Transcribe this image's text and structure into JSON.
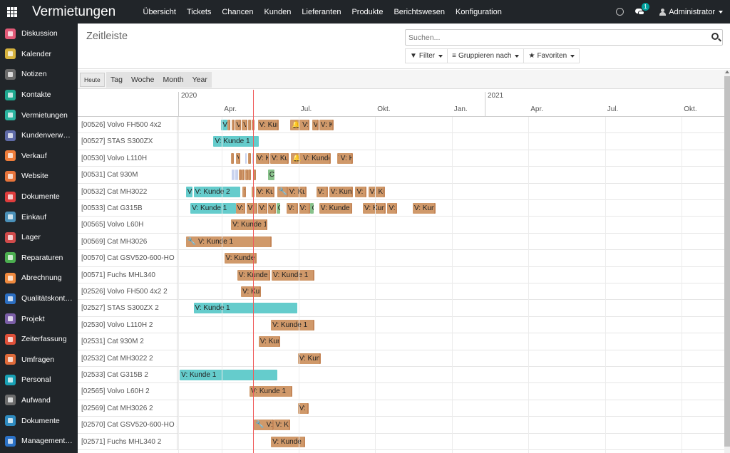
{
  "topbar": {
    "app_title": "Vermietungen",
    "menu": [
      "Übersicht",
      "Tickets",
      "Chancen",
      "Kunden",
      "Lieferanten",
      "Produkte",
      "Berichtswesen",
      "Konfiguration"
    ],
    "chat_badge": "1",
    "user": "Administrator"
  },
  "sidebar": {
    "items": [
      {
        "label": "Diskussion",
        "color": "#e25977"
      },
      {
        "label": "Kalender",
        "color": "#d6b23d"
      },
      {
        "label": "Notizen",
        "color": "#6b6b6b"
      },
      {
        "label": "Kontakte",
        "color": "#1fa88f"
      },
      {
        "label": "Vermietungen",
        "color": "#2ab39f"
      },
      {
        "label": "Kundenverwaltung",
        "color": "#5f6ba8"
      },
      {
        "label": "Verkauf",
        "color": "#ef7d3a"
      },
      {
        "label": "Website",
        "color": "#e8743b"
      },
      {
        "label": "Dokumente",
        "color": "#e03d3d"
      },
      {
        "label": "Einkauf",
        "color": "#4a90b8"
      },
      {
        "label": "Lager",
        "color": "#d14b4b"
      },
      {
        "label": "Reparaturen",
        "color": "#4caf50"
      },
      {
        "label": "Abrechnung",
        "color": "#f08a3e"
      },
      {
        "label": "Qualitätskontrolle",
        "color": "#2c6fc2"
      },
      {
        "label": "Projekt",
        "color": "#7b5ea7"
      },
      {
        "label": "Zeiterfassung",
        "color": "#e0513a"
      },
      {
        "label": "Umfragen",
        "color": "#e06b3a"
      },
      {
        "label": "Personal",
        "color": "#18a1b5"
      },
      {
        "label": "Aufwand",
        "color": "#6d6d6d"
      },
      {
        "label": "Dokumente",
        "color": "#2e8bc0"
      },
      {
        "label": "Management-Reports",
        "color": "#2b72c7"
      }
    ]
  },
  "control_panel": {
    "title": "Zeitleiste",
    "search_placeholder": "Suchen...",
    "filter_label": "Filter",
    "group_label": "Gruppieren nach",
    "favorites_label": "Favoriten"
  },
  "scale": {
    "today": "Heute",
    "options": [
      "Tag",
      "Woche",
      "Month",
      "Year"
    ]
  },
  "timeline": {
    "years": [
      "2020",
      "2021"
    ],
    "quarters": [
      "Apr.",
      "Jul.",
      "Okt.",
      "Jan.",
      "Apr.",
      "Jul.",
      "Okt."
    ],
    "rows": [
      {
        "label": "[00526] Volvo FH500 4x2",
        "bars": [
          {
            "s": 0.56,
            "e": 0.645,
            "t": "V: Kunde 1",
            "c": "c"
          },
          {
            "s": 0.645,
            "e": 0.675,
            "t": "V: Kunde 1",
            "c": "o"
          },
          {
            "s": 0.695,
            "e": 0.725,
            "t": "V: Kunde 1",
            "c": "o"
          },
          {
            "s": 0.74,
            "e": 0.815,
            "t": "V: Kunde 1",
            "c": "o"
          },
          {
            "s": 0.83,
            "e": 0.9,
            "t": "V: Kunde 1",
            "c": "o"
          },
          {
            "s": 0.915,
            "e": 0.935,
            "t": "V: Kunde 1",
            "c": "o"
          },
          {
            "s": 0.955,
            "e": 1.0,
            "t": "V: Kunde 1",
            "c": "o"
          },
          {
            "s": 1.04,
            "e": 1.31,
            "t": "V: Kunde 2",
            "c": "o"
          },
          {
            "s": 1.46,
            "e": 1.71,
            "t": "🔔 V: Kunde 1",
            "c": "o"
          },
          {
            "s": 1.745,
            "e": 1.83,
            "t": "V: Kunde 1",
            "c": "o"
          },
          {
            "s": 1.84,
            "e": 2.03,
            "t": "V: Kunde 1",
            "c": "o"
          }
        ]
      },
      {
        "label": "[00527] STAS S300ZX",
        "bars": [
          {
            "s": 0.46,
            "e": 1.05,
            "t": "V: Kunde 1",
            "c": "c"
          }
        ]
      },
      {
        "label": "[00530] Volvo L110H",
        "bars": [
          {
            "s": 0.69,
            "e": 0.73,
            "t": "V: Kunde 1",
            "c": "o"
          },
          {
            "s": 0.75,
            "e": 0.81,
            "t": "V: Kunde 1",
            "c": "o"
          },
          {
            "s": 0.87,
            "e": 0.875,
            "t": "",
            "c": "l"
          },
          {
            "s": 0.91,
            "e": 0.95,
            "t": "V: Kunde 1",
            "c": "o"
          },
          {
            "s": 0.97,
            "e": 0.98,
            "t": "",
            "c": "l"
          },
          {
            "s": 1.01,
            "e": 1.19,
            "t": "V: Kunde 1",
            "c": "o"
          },
          {
            "s": 1.2,
            "e": 1.445,
            "t": "V: Kunde 1",
            "c": "o"
          },
          {
            "s": 1.47,
            "e": 1.99,
            "t": "🔔 V: Kunde 2",
            "c": "o"
          },
          {
            "s": 2.07,
            "e": 2.09,
            "t": "V: Kunde 1",
            "c": "o"
          },
          {
            "s": 2.1,
            "e": 2.28,
            "t": "V: Kunde 1",
            "c": "o"
          }
        ]
      },
      {
        "label": "[00531] Cat 930M",
        "bars": [
          {
            "s": 0.7,
            "e": 0.71,
            "t": "",
            "c": "l"
          },
          {
            "s": 0.72,
            "e": 0.73,
            "t": "",
            "c": "l"
          },
          {
            "s": 0.74,
            "e": 0.75,
            "t": "",
            "c": "l"
          },
          {
            "s": 0.76,
            "e": 0.77,
            "t": "",
            "c": "l"
          },
          {
            "s": 0.79,
            "e": 0.81,
            "t": "V: Kunde 1",
            "c": "o"
          },
          {
            "s": 0.83,
            "e": 0.85,
            "t": "V: Kunde 1",
            "c": "o"
          },
          {
            "s": 0.87,
            "e": 0.89,
            "t": "V: Kunde 1",
            "c": "o"
          },
          {
            "s": 0.91,
            "e": 0.95,
            "t": "V: Kunde 1",
            "c": "o"
          },
          {
            "s": 0.98,
            "e": 1.0,
            "t": "V: Kunde 1",
            "c": "o"
          },
          {
            "s": 1.17,
            "e": 1.26,
            "t": "CORRECTIVE",
            "c": "g"
          }
        ]
      },
      {
        "label": "[00532] Cat MH3022",
        "bars": [
          {
            "s": 0.1,
            "e": 0.19,
            "t": "V: Kunde 1",
            "c": "c"
          },
          {
            "s": 0.2,
            "e": 0.81,
            "t": "V: Kunde 2",
            "c": "c"
          },
          {
            "s": 0.84,
            "e": 0.88,
            "t": "V: Kunde 1",
            "c": "o"
          },
          {
            "s": 0.96,
            "e": 1.0,
            "t": "V: Kunde 1",
            "c": "o"
          },
          {
            "s": 1.01,
            "e": 1.26,
            "t": "V: Kunde 1",
            "c": "o"
          },
          {
            "s": 1.29,
            "e": 1.43,
            "t": "🔧🔔 V: Kunde 2",
            "c": "o"
          },
          {
            "s": 1.43,
            "e": 1.67,
            "t": "V: Kunde 2",
            "c": "o"
          },
          {
            "s": 1.8,
            "e": 1.95,
            "t": "V: Kunde 1",
            "c": "o"
          },
          {
            "s": 1.97,
            "e": 2.28,
            "t": "V: Kunde 2",
            "c": "o"
          },
          {
            "s": 2.31,
            "e": 2.46,
            "t": "V: Kunde 1",
            "c": "o"
          },
          {
            "s": 2.48,
            "e": 2.7,
            "t": "V: Kunde 2",
            "c": "o"
          }
        ]
      },
      {
        "label": "[00533] Cat G315B",
        "bars": [
          {
            "s": 0.16,
            "e": 0.75,
            "t": "V: Kunde 1",
            "c": "c"
          },
          {
            "s": 0.75,
            "e": 0.87,
            "t": "V: Kunde 1",
            "c": "o"
          },
          {
            "s": 0.89,
            "e": 1.03,
            "t": "V: Kunde 1",
            "c": "o"
          },
          {
            "s": 1.04,
            "e": 1.16,
            "t": "V: Kunde 1",
            "c": "o"
          },
          {
            "s": 1.17,
            "e": 1.27,
            "t": "V: Kunde 1",
            "c": "o"
          },
          {
            "s": 1.28,
            "e": 1.33,
            "t": "CORRECTIVE",
            "c": "g"
          },
          {
            "s": 1.41,
            "e": 1.56,
            "t": "V: Kunde 1",
            "c": "o"
          },
          {
            "s": 1.57,
            "e": 1.72,
            "t": "V: Kunde 1",
            "c": "o"
          },
          {
            "s": 1.725,
            "e": 1.765,
            "t": "CORRECTIVE",
            "c": "g"
          },
          {
            "s": 1.84,
            "e": 2.27,
            "t": "V: Kunde 1",
            "c": "o"
          },
          {
            "s": 2.41,
            "e": 2.71,
            "t": "V: Kunde 2",
            "c": "o"
          },
          {
            "s": 2.73,
            "e": 2.86,
            "t": "V: Kunde 1",
            "c": "o"
          },
          {
            "s": 3.06,
            "e": 3.36,
            "t": "V: Kunde 2",
            "c": "o"
          }
        ]
      },
      {
        "label": "[00565] Volvo L60H",
        "bars": [
          {
            "s": 0.69,
            "e": 1.16,
            "t": "V: Kunde 1",
            "c": "o"
          }
        ]
      },
      {
        "label": "[00569] Cat MH3026",
        "bars": [
          {
            "s": 0.1,
            "e": 1.22,
            "t": "🔧 V: Kunde 1",
            "c": "o"
          }
        ]
      },
      {
        "label": "[00570] Cat GSV520-600-HO",
        "bars": [
          {
            "s": 0.6,
            "e": 1.02,
            "t": "V: Kunde 1",
            "c": "o"
          }
        ]
      },
      {
        "label": "[00571] Fuchs MHL340",
        "bars": [
          {
            "s": 0.77,
            "e": 1.2,
            "t": "V: Kunde 1",
            "c": "o"
          },
          {
            "s": 1.22,
            "e": 1.78,
            "t": "V: Kunde 1",
            "c": "o"
          }
        ]
      },
      {
        "label": "[02526] Volvo FH500 4x2 2",
        "bars": [
          {
            "s": 0.82,
            "e": 1.08,
            "t": "V: Kunde 1",
            "c": "o"
          }
        ]
      },
      {
        "label": "[02527] STAS S300ZX 2",
        "bars": [
          {
            "s": 0.2,
            "e": 1.55,
            "t": "V: Kunde 1",
            "c": "c"
          }
        ]
      },
      {
        "label": "[02530] Volvo L110H 2",
        "bars": [
          {
            "s": 1.21,
            "e": 1.78,
            "t": "V: Kunde 1",
            "c": "o"
          }
        ]
      },
      {
        "label": "[02531] Cat 930M 2",
        "bars": [
          {
            "s": 1.05,
            "e": 1.33,
            "t": "V: Kunde 1",
            "c": "o"
          }
        ]
      },
      {
        "label": "[02532] Cat MH3022 2",
        "bars": [
          {
            "s": 1.56,
            "e": 1.86,
            "t": "V: Kunde 1",
            "c": "o"
          }
        ]
      },
      {
        "label": "[02533] Cat G315B 2",
        "bars": [
          {
            "s": 0.02,
            "e": 1.29,
            "t": "V: Kunde 1",
            "c": "c"
          }
        ]
      },
      {
        "label": "[02565] Volvo L60H 2",
        "bars": [
          {
            "s": 0.93,
            "e": 1.49,
            "t": "V: Kunde 1",
            "c": "o"
          }
        ]
      },
      {
        "label": "[02569] Cat MH3026 2",
        "bars": [
          {
            "s": 1.56,
            "e": 1.7,
            "t": "V: Kunde 1",
            "c": "o"
          }
        ]
      },
      {
        "label": "[02570] Cat GSV520-600-HO 2",
        "bars": [
          {
            "s": 0.99,
            "e": 1.25,
            "t": "🔧 V: Kunde 1",
            "c": "o"
          },
          {
            "s": 1.25,
            "e": 1.46,
            "t": "V: Kunde 1",
            "c": "o"
          }
        ]
      },
      {
        "label": "[02571] Fuchs MHL340 2",
        "bars": [
          {
            "s": 1.21,
            "e": 1.66,
            "t": "V: Kunde 1",
            "c": "o"
          }
        ]
      }
    ]
  }
}
